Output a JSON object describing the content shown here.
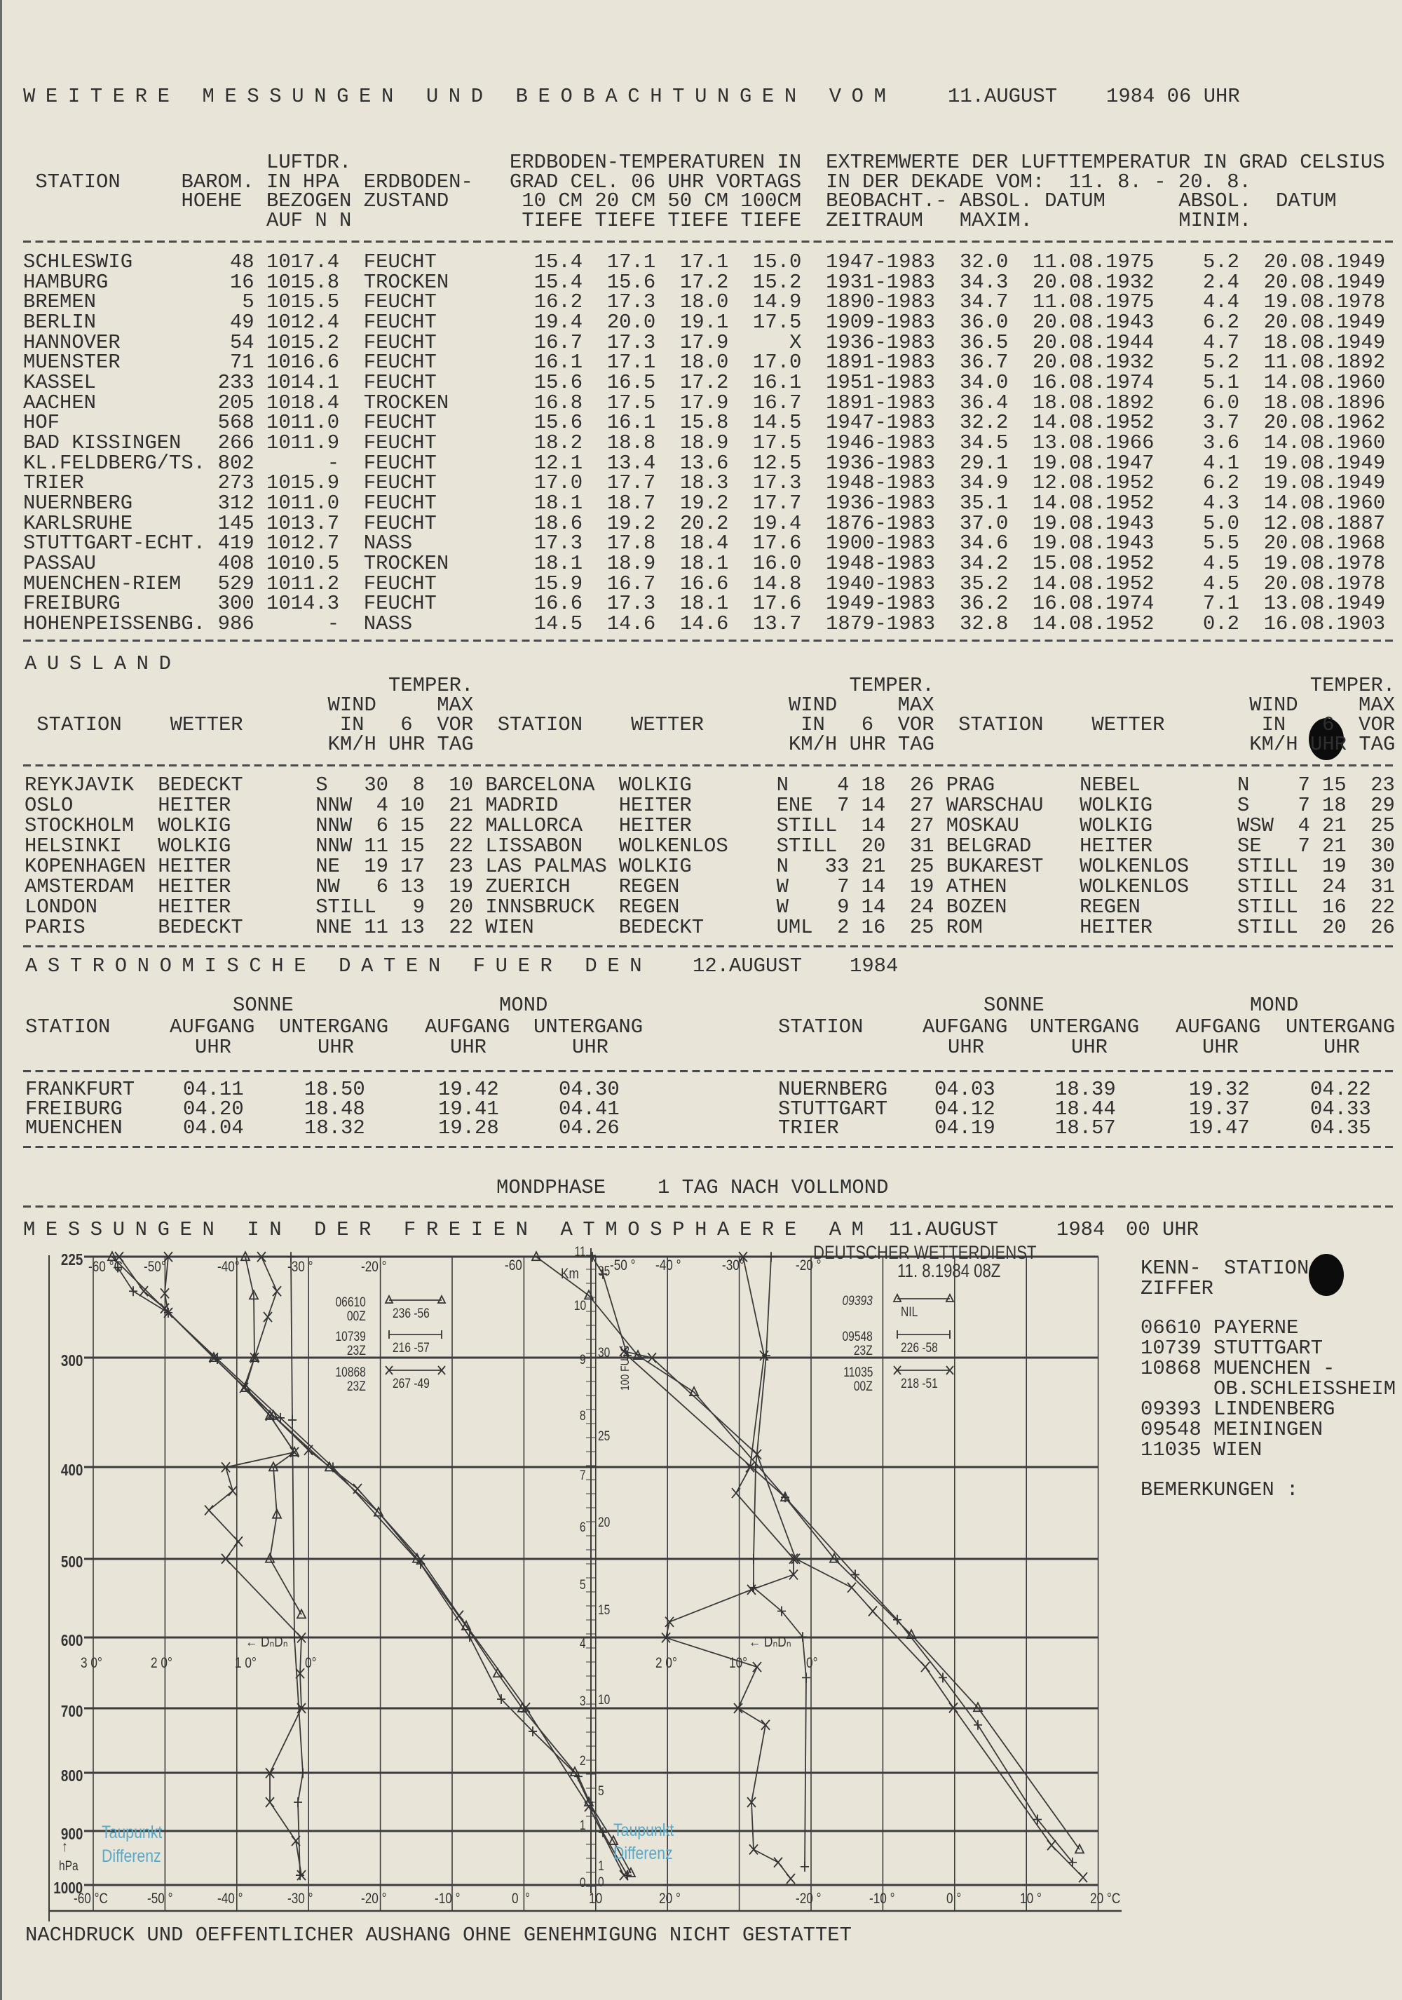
{
  "title": {
    "spaced": "WEITERE MESSUNGEN UND BEOBACHTUNGEN VOM",
    "date": "11.AUGUST",
    "time": "1984 06 UHR"
  },
  "inland": {
    "headers": [
      "STATION",
      "BAROM.",
      "HOEHE",
      "LUFTDR.",
      "IN HPA",
      "BEZOGEN",
      "AUF N N",
      "ERDBODEN-",
      "ZUSTAND",
      "ERDBODEN-TEMPERATUREN IN",
      "GRAD CEL. 06 UHR VORTAGS",
      "10 CM 20 CM 50 CM 100CM",
      "TIEFE TIEFE TIEFE TIEFE",
      "EXTREMWERTE DER LUFTTEMPERATUR IN GRAD CELSIUS",
      "IN DER DEKADE VOM:  11. 8. - 20. 8.",
      "BEOBACHT.- ABSOL. DATUM",
      "ZEITRAUM   MAXIM.",
      "ABSOL.  DATUM",
      "MINIM."
    ],
    "rows": [
      [
        "SCHLESWIG",
        "48",
        "1017.4",
        "FEUCHT",
        "15.4",
        "17.1",
        "17.1",
        "15.0",
        "1947-1983",
        "32.0",
        "11.08.1975",
        "5.2",
        "20.08.1949"
      ],
      [
        "HAMBURG",
        "16",
        "1015.8",
        "TROCKEN",
        "15.4",
        "15.6",
        "17.2",
        "15.2",
        "1931-1983",
        "34.3",
        "20.08.1932",
        "2.4",
        "20.08.1949"
      ],
      [
        "BREMEN",
        "5",
        "1015.5",
        "FEUCHT",
        "16.2",
        "17.3",
        "18.0",
        "14.9",
        "1890-1983",
        "34.7",
        "11.08.1975",
        "4.4",
        "19.08.1978"
      ],
      [
        "BERLIN",
        "49",
        "1012.4",
        "FEUCHT",
        "19.4",
        "20.0",
        "19.1",
        "17.5",
        "1909-1983",
        "36.0",
        "20.08.1943",
        "6.2",
        "20.08.1949"
      ],
      [
        "HANNOVER",
        "54",
        "1015.2",
        "FEUCHT",
        "16.7",
        "17.3",
        "17.9",
        "X",
        "1936-1983",
        "36.5",
        "20.08.1944",
        "4.7",
        "18.08.1949"
      ],
      [
        "MUENSTER",
        "71",
        "1016.6",
        "FEUCHT",
        "16.1",
        "17.1",
        "18.0",
        "17.0",
        "1891-1983",
        "36.7",
        "20.08.1932",
        "5.2",
        "11.08.1892"
      ],
      [
        "KASSEL",
        "233",
        "1014.1",
        "FEUCHT",
        "15.6",
        "16.5",
        "17.2",
        "16.1",
        "1951-1983",
        "34.0",
        "16.08.1974",
        "5.1",
        "14.08.1960"
      ],
      [
        "AACHEN",
        "205",
        "1018.4",
        "TROCKEN",
        "16.8",
        "17.5",
        "17.9",
        "16.7",
        "1891-1983",
        "36.4",
        "18.08.1892",
        "6.0",
        "18.08.1896"
      ],
      [
        "HOF",
        "568",
        "1011.0",
        "FEUCHT",
        "15.6",
        "16.1",
        "15.8",
        "14.5",
        "1947-1983",
        "32.2",
        "14.08.1952",
        "3.7",
        "20.08.1962"
      ],
      [
        "BAD KISSINGEN",
        "266",
        "1011.9",
        "FEUCHT",
        "18.2",
        "18.8",
        "18.9",
        "17.5",
        "1946-1983",
        "34.5",
        "13.08.1966",
        "3.6",
        "14.08.1960"
      ],
      [
        "KL.FELDBERG/TS.",
        "802",
        "-",
        "FEUCHT",
        "12.1",
        "13.4",
        "13.6",
        "12.5",
        "1936-1983",
        "29.1",
        "19.08.1947",
        "4.1",
        "19.08.1949"
      ],
      [
        "TRIER",
        "273",
        "1015.9",
        "FEUCHT",
        "17.0",
        "17.7",
        "18.3",
        "17.3",
        "1948-1983",
        "34.9",
        "12.08.1952",
        "6.2",
        "19.08.1949"
      ],
      [
        "NUERNBERG",
        "312",
        "1011.0",
        "FEUCHT",
        "18.1",
        "18.7",
        "19.2",
        "17.7",
        "1936-1983",
        "35.1",
        "14.08.1952",
        "4.3",
        "14.08.1960"
      ],
      [
        "KARLSRUHE",
        "145",
        "1013.7",
        "FEUCHT",
        "18.6",
        "19.2",
        "20.2",
        "19.4",
        "1876-1983",
        "37.0",
        "19.08.1943",
        "5.0",
        "12.08.1887"
      ],
      [
        "STUTTGART-ECHT.",
        "419",
        "1012.7",
        "NASS",
        "17.3",
        "17.8",
        "18.4",
        "17.6",
        "1900-1983",
        "34.6",
        "19.08.1943",
        "5.5",
        "20.08.1968"
      ],
      [
        "PASSAU",
        "408",
        "1010.5",
        "TROCKEN",
        "18.1",
        "18.9",
        "18.1",
        "16.0",
        "1948-1983",
        "34.2",
        "15.08.1952",
        "4.5",
        "19.08.1978"
      ],
      [
        "MUENCHEN-RIEM",
        "529",
        "1011.2",
        "FEUCHT",
        "15.9",
        "16.7",
        "16.6",
        "14.8",
        "1940-1983",
        "35.2",
        "14.08.1952",
        "4.5",
        "20.08.1978"
      ],
      [
        "FREIBURG",
        "300",
        "1014.3",
        "FEUCHT",
        "16.6",
        "17.3",
        "18.1",
        "17.6",
        "1949-1983",
        "36.2",
        "16.08.1974",
        "7.1",
        "13.08.1949"
      ],
      [
        "HOHENPEISSENBG.",
        "986",
        "-",
        "NASS",
        "14.5",
        "14.6",
        "14.6",
        "13.7",
        "1879-1983",
        "32.8",
        "14.08.1952",
        "0.2",
        "16.08.1903"
      ]
    ]
  },
  "ausland": {
    "title": "AUSLAND",
    "headers": {
      "station": "STATION",
      "wetter": "WETTER",
      "temper": "TEMPER.",
      "wind": "WIND",
      "max": "MAX",
      "in": "IN",
      "six": "6",
      "vor": "VOR",
      "units": "KM/H UHR TAG"
    },
    "rows": [
      [
        [
          "REYKJAVIK",
          "BEDECKT",
          "S",
          "30",
          "8",
          "10"
        ],
        [
          "BARCELONA",
          "WOLKIG",
          "N",
          "4",
          "18",
          "26"
        ],
        [
          "PRAG",
          "NEBEL",
          "N",
          "7",
          "15",
          "23"
        ]
      ],
      [
        [
          "OSLO",
          "HEITER",
          "NNW",
          "4",
          "10",
          "21"
        ],
        [
          "MADRID",
          "HEITER",
          "ENE",
          "7",
          "14",
          "27"
        ],
        [
          "WARSCHAU",
          "WOLKIG",
          "S",
          "7",
          "18",
          "29"
        ]
      ],
      [
        [
          "STOCKHOLM",
          "WOLKIG",
          "NNW",
          "6",
          "15",
          "22"
        ],
        [
          "MALLORCA",
          "HEITER",
          "STILL",
          "",
          "14",
          "27"
        ],
        [
          "MOSKAU",
          "WOLKIG",
          "WSW",
          "4",
          "21",
          "25"
        ]
      ],
      [
        [
          "HELSINKI",
          "WOLKIG",
          "NNW",
          "11",
          "15",
          "22"
        ],
        [
          "LISSABON",
          "WOLKENLOS",
          "STILL",
          "",
          "20",
          "31"
        ],
        [
          "BELGRAD",
          "HEITER",
          "SE",
          "7",
          "21",
          "30"
        ]
      ],
      [
        [
          "KOPENHAGEN",
          "HEITER",
          "NE",
          "19",
          "17",
          "23"
        ],
        [
          "LAS PALMAS",
          "WOLKIG",
          "N",
          "33",
          "21",
          "25"
        ],
        [
          "BUKAREST",
          "WOLKENLOS",
          "STILL",
          "",
          "19",
          "30"
        ]
      ],
      [
        [
          "AMSTERDAM",
          "HEITER",
          "NW",
          "6",
          "13",
          "19"
        ],
        [
          "ZUERICH",
          "REGEN",
          "W",
          "7",
          "14",
          "19"
        ],
        [
          "ATHEN",
          "WOLKENLOS",
          "STILL",
          "",
          "24",
          "31"
        ]
      ],
      [
        [
          "LONDON",
          "HEITER",
          "STILL",
          "",
          "9",
          "20"
        ],
        [
          "INNSBRUCK",
          "REGEN",
          "W",
          "9",
          "14",
          "24"
        ],
        [
          "BOZEN",
          "REGEN",
          "STILL",
          "",
          "16",
          "22"
        ]
      ],
      [
        [
          "PARIS",
          "BEDECKT",
          "NNE",
          "11",
          "13",
          "22"
        ],
        [
          "WIEN",
          "BEDECKT",
          "UML",
          "2",
          "16",
          "25"
        ],
        [
          "ROM",
          "HEITER",
          "STILL",
          "",
          "20",
          "26"
        ]
      ]
    ]
  },
  "astro": {
    "title_spaced": "ASTRONOMISCHE DATEN FUER DEN",
    "date": "12.AUGUST",
    "year": "1984",
    "headers": {
      "sonne": "SONNE",
      "mond": "MOND",
      "station": "STATION",
      "aufgang": "AUFGANG",
      "untergang": "UNTERGANG",
      "uhr": "UHR"
    },
    "rows": [
      [
        [
          "FRANKFURT",
          "04.11",
          "18.50",
          "19.42",
          "04.30"
        ],
        [
          "NUERNBERG",
          "04.03",
          "18.39",
          "19.32",
          "04.22"
        ]
      ],
      [
        [
          "FREIBURG",
          "04.20",
          "18.48",
          "19.41",
          "04.41"
        ],
        [
          "STUTTGART",
          "04.12",
          "18.44",
          "19.37",
          "04.33"
        ]
      ],
      [
        [
          "MUENCHEN",
          "04.04",
          "18.32",
          "19.28",
          "04.26"
        ],
        [
          "TRIER",
          "04.19",
          "18.57",
          "19.47",
          "04.35"
        ]
      ]
    ]
  },
  "mondphase": {
    "label": "MONDPHASE",
    "value": "1 TAG NACH VOLLMOND"
  },
  "aerology": {
    "title_spaced": "MESSUNGEN IN DER FREIEN ATMOSPHAERE AM",
    "date": "11.AUGUST",
    "year": "1984",
    "time": "00 UHR",
    "issuer": "DEUTSCHER WETTERDIENST",
    "stamp": "11. 8.1984 08Z",
    "pressure_levels": [
      "225",
      "300",
      "400",
      "500",
      "600",
      "700",
      "800",
      "900",
      "1000"
    ],
    "pressure_unit": "hPa",
    "pressure_arrow": "↑",
    "top_labels_left": [
      "-60 °C",
      "-50°",
      "-40°",
      "-30 °",
      "-20 °"
    ],
    "top_labels_right": [
      "-60",
      "-50 °",
      "-40 °",
      "-30°",
      "-20 °"
    ],
    "bottom_labels": [
      "-60 °C",
      "-50 °",
      "-40 °",
      "-30 °",
      "-20 °",
      "-10 °",
      "0  °",
      "10",
      "20 °",
      "-20 °",
      "-10 °",
      "0 °",
      "10 °",
      "20 °C"
    ],
    "km_label": "Km",
    "fuss_label": "100 FUSS",
    "km_ticks": [
      "11",
      "10",
      "9",
      "8",
      "7",
      "6",
      "5",
      "4",
      "3",
      "2",
      "1",
      "0"
    ],
    "fuss_ticks": [
      "35",
      "30",
      "25",
      "20",
      "15",
      "10",
      "5",
      "1",
      "0"
    ],
    "dew_scale_left": [
      "3 0°",
      "2 0°",
      "1 0°",
      "0°"
    ],
    "dew_scale_right": [
      "2 0°",
      "10°",
      "0°"
    ],
    "dew_symbol": "← DₙDₙ",
    "dew_caption": [
      "Taupunkt",
      "Differenz"
    ],
    "legend_left": [
      {
        "station": "06610",
        "time": "00Z",
        "values": "236 -56",
        "marker": "triangle"
      },
      {
        "station": "10739",
        "time": "23Z",
        "values": "216 -57",
        "marker": "plus"
      },
      {
        "station": "10868",
        "time": "23Z",
        "values": "267 -49",
        "marker": "cross"
      }
    ],
    "legend_right": [
      {
        "station": "09393",
        "time": "",
        "values": "NIL",
        "marker": "triangle"
      },
      {
        "station": "09548",
        "time": "23Z",
        "values": "226 -58",
        "marker": "plus"
      },
      {
        "station": "11035",
        "time": "00Z",
        "values": "218 -51",
        "marker": "cross"
      }
    ],
    "stations_header": {
      "code": "KENN-",
      "name": "STATION",
      "code2": "ZIFFER"
    },
    "stations": [
      {
        "code": "06610",
        "name": "PAYERNE"
      },
      {
        "code": "10739",
        "name": "STUTTGART"
      },
      {
        "code": "10868",
        "name": "MUENCHEN -"
      },
      {
        "code": "",
        "name": "OB.SCHLEISSHEIM"
      },
      {
        "code": "09393",
        "name": "LINDENBERG"
      },
      {
        "code": "09548",
        "name": "MEININGEN"
      },
      {
        "code": "11035",
        "name": "WIEN"
      }
    ],
    "remarks_label": "BEMERKUNGEN :",
    "colors": {
      "ink": "#2e2e2e",
      "paper": "#e8e5d8",
      "caption": "#58a9c9"
    }
  },
  "footer": "NACHDRUCK UND OEFFENTLICHER AUSHANG OHNE GENEHMIGUNG NICHT GESTATTET"
}
